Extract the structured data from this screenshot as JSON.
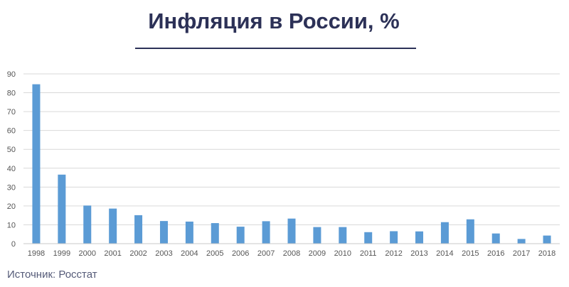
{
  "title": "Инфляция в России, %",
  "source": "Источник: Росстат",
  "colors": {
    "bar": "#5b9bd5",
    "title": "#2c3157",
    "grid": "#d9d9d9"
  },
  "chart_data": {
    "type": "bar",
    "title": "Инфляция в России, %",
    "xlabel": "",
    "ylabel": "",
    "ylim": [
      0,
      90
    ],
    "yticks": [
      0,
      10,
      20,
      30,
      40,
      50,
      60,
      70,
      80,
      90
    ],
    "grid": true,
    "categories": [
      "1998",
      "1999",
      "2000",
      "2001",
      "2002",
      "2003",
      "2004",
      "2005",
      "2006",
      "2007",
      "2008",
      "2009",
      "2010",
      "2011",
      "2012",
      "2013",
      "2014",
      "2015",
      "2016",
      "2017",
      "2018"
    ],
    "values": [
      84.5,
      36.6,
      20.2,
      18.6,
      15.1,
      12.0,
      11.7,
      10.9,
      9.0,
      11.9,
      13.3,
      8.8,
      8.8,
      6.1,
      6.6,
      6.5,
      11.4,
      12.9,
      5.4,
      2.5,
      4.3
    ]
  }
}
